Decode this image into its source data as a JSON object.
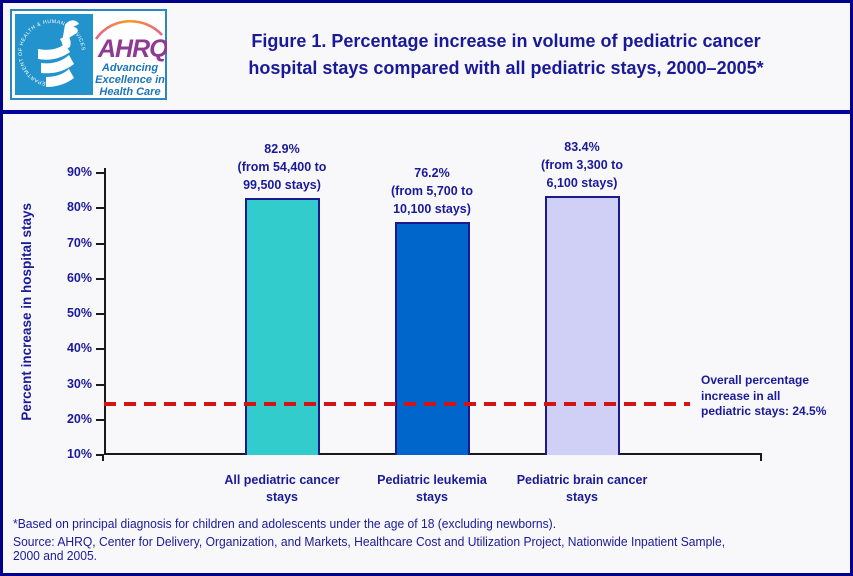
{
  "header": {
    "title_lines": [
      "Figure 1. Percentage increase in volume of pediatric cancer",
      "hospital stays compared with all pediatric stays, 2000–2005*"
    ],
    "logo": {
      "hhs_circle_text": "DEPARTMENT OF HEALTH & HUMAN SERVICES • USA",
      "ahrq_acronym": "AHRQ",
      "tagline_lines": [
        "Advancing",
        "Excellence in",
        "Health Care"
      ]
    }
  },
  "chart_data": {
    "type": "bar",
    "title": "Figure 1. Percentage increase in volume of pediatric cancer hospital stays compared with all pediatric stays, 2000–2005*",
    "xlabel": "",
    "ylabel": "Percent increase in hospital stays",
    "ylim": [
      10,
      90
    ],
    "yticks": [
      "10%",
      "20%",
      "30%",
      "40%",
      "50%",
      "60%",
      "70%",
      "80%",
      "90%"
    ],
    "grid": false,
    "legend": false,
    "categories": [
      {
        "label_lines": [
          "All pediatric cancer",
          "stays"
        ],
        "value": 82.9,
        "from": 54400,
        "to": 99500,
        "annotation_lines": [
          "82.9%",
          "(from 54,400 to",
          "99,500 stays)"
        ],
        "color": "#33CCCC"
      },
      {
        "label_lines": [
          "Pediatric leukemia",
          "stays"
        ],
        "value": 76.2,
        "from": 5700,
        "to": 10100,
        "annotation_lines": [
          "76.2%",
          "(from 5,700 to",
          "10,100 stays)"
        ],
        "color": "#0066CC"
      },
      {
        "label_lines": [
          "Pediatric brain cancer",
          "stays"
        ],
        "value": 83.4,
        "from": 3300,
        "to": 6100,
        "annotation_lines": [
          "83.4%",
          "(from 3,300 to",
          "6,100 stays)"
        ],
        "color": "#D0CFF5"
      }
    ],
    "reference_line": {
      "value": 24.5,
      "style": "dashed",
      "color": "#D21414",
      "label_lines": [
        "Overall percentage",
        "increase in all",
        "pediatric stays: 24.5%"
      ]
    },
    "bar_border_color": "#1A1A8C",
    "text_color": "#1A1A99"
  },
  "footnotes": {
    "note": "*Based on principal diagnosis for children and adolescents under the age of 18 (excluding newborns).",
    "source_lines": [
      "Source: AHRQ, Center for Delivery, Organization, and Markets, Healthcare Cost and Utilization Project, Nationwide Inpatient Sample,",
      "2000 and 2005."
    ]
  }
}
